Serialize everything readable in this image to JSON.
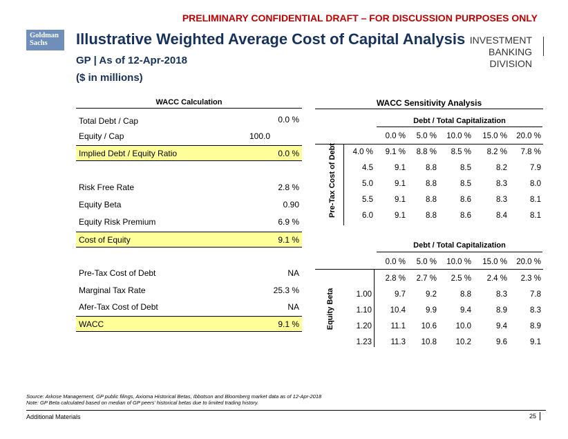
{
  "banner": "PRELIMINARY CONFIDENTIAL DRAFT – FOR DISCUSSION PURPOSES ONLY",
  "logo": {
    "line1": "Goldman",
    "line2": "Sachs"
  },
  "title": "Illustrative Weighted Average Cost of Capital Analysis",
  "subtitle": "GP | As of 12-Apr-2018",
  "units": "($ in millions)",
  "division": {
    "line1": "INVESTMENT BANKING",
    "line2": "DIVISION"
  },
  "wacc_calc": {
    "heading": "WACC Calculation",
    "rows": [
      {
        "label": "Total Debt / Cap",
        "value": "0.0 %"
      },
      {
        "label": "Equity / Cap",
        "value": "100.0"
      },
      {
        "label": "Implied Debt / Equity Ratio",
        "value": "0.0 %"
      },
      {
        "label": "Risk Free Rate",
        "value": "2.8 %"
      },
      {
        "label": "Equity Beta",
        "value": "0.90"
      },
      {
        "label": "Equity Risk Premium",
        "value": "6.9 %"
      },
      {
        "label": "Cost of Equity",
        "value": "9.1 %"
      },
      {
        "label": "Pre-Tax Cost of Debt",
        "value": "NA"
      },
      {
        "label": "Marginal Tax Rate",
        "value": "25.3 %"
      },
      {
        "label": "Afer-Tax Cost of Debt",
        "value": "NA"
      },
      {
        "label": "WACC",
        "value": "9.1 %"
      }
    ]
  },
  "sensitivity": {
    "heading": "WACC Sensitivity Analysis",
    "table1": {
      "col_header": "Debt / Total Capitalization",
      "row_header": "Pre-Tax Cost of Debt",
      "columns": [
        "0.0 %",
        "5.0 %",
        "10.0 %",
        "15.0 %",
        "20.0 %"
      ],
      "rows": [
        {
          "label": "4.0 %",
          "values": [
            "9.1 %",
            "8.8 %",
            "8.5 %",
            "8.2 %",
            "7.8 %"
          ]
        },
        {
          "label": "4.5",
          "values": [
            "9.1",
            "8.8",
            "8.5",
            "8.2",
            "7.9"
          ]
        },
        {
          "label": "5.0",
          "values": [
            "9.1",
            "8.8",
            "8.5",
            "8.3",
            "8.0"
          ]
        },
        {
          "label": "5.5",
          "values": [
            "9.1",
            "8.8",
            "8.6",
            "8.3",
            "8.1"
          ]
        },
        {
          "label": "6.0",
          "values": [
            "9.1",
            "8.8",
            "8.6",
            "8.4",
            "8.1"
          ]
        }
      ]
    },
    "table2": {
      "col_header": "Debt / Total Capitalization",
      "row_header": "Equity Beta",
      "columns": [
        "0.0 %",
        "5.0 %",
        "10.0 %",
        "15.0 %",
        "20.0 %"
      ],
      "top_row": [
        "2.8 %",
        "2.7 %",
        "2.5 %",
        "2.4 %",
        "2.3 %"
      ],
      "rows": [
        {
          "label": "1.00",
          "values": [
            "9.7",
            "9.2",
            "8.8",
            "8.3",
            "7.8"
          ]
        },
        {
          "label": "1.10",
          "values": [
            "10.4",
            "9.9",
            "9.4",
            "8.9",
            "8.3"
          ]
        },
        {
          "label": "1.20",
          "values": [
            "11.1",
            "10.6",
            "10.0",
            "9.4",
            "8.9"
          ]
        },
        {
          "label": "1.23",
          "values": [
            "11.3",
            "10.8",
            "10.2",
            "9.6",
            "9.1"
          ]
        }
      ]
    }
  },
  "source_note": "Source: Arkose Management, GP public filings, Axioma Historical Betas, Ibbotson and Bloomberg market data as of 12-Apr-2018",
  "note": "Note: GP Beta calculated based on median of GP peers’ historical betas due to limited trading history.",
  "footer": {
    "left": "Additional Materials",
    "page": "25"
  }
}
